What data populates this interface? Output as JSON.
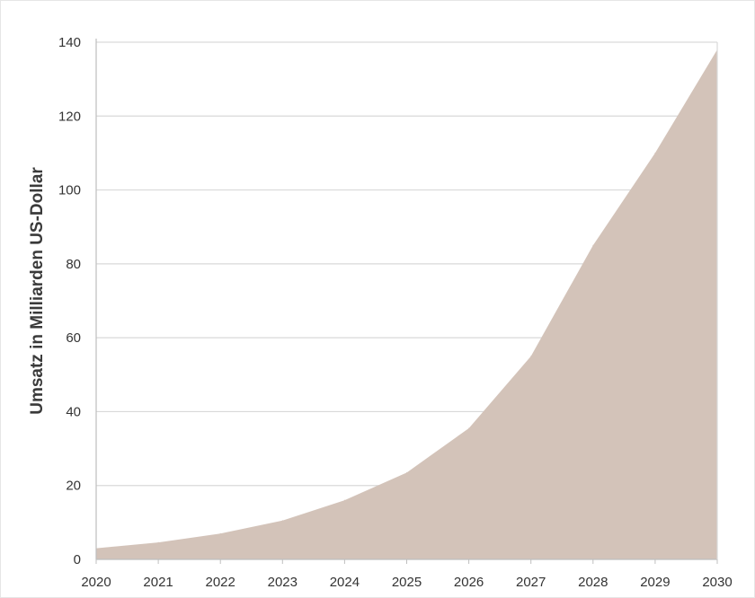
{
  "chart_data": {
    "type": "area",
    "title": "",
    "xlabel": "",
    "ylabel": "Umsatz in Milliarden US-Dollar",
    "x": [
      "2020",
      "2021",
      "2022",
      "2023",
      "2024",
      "2025",
      "2026",
      "2027",
      "2028",
      "2029",
      "2030"
    ],
    "series": [
      {
        "values": [
          3,
          4.6,
          7,
          10.5,
          16,
          23.5,
          35.5,
          55,
          85,
          110,
          138
        ]
      }
    ],
    "xlim": [
      2020,
      2030
    ],
    "ylim": [
      0,
      140
    ],
    "yticks": [
      0,
      20,
      40,
      60,
      80,
      100,
      120,
      140
    ],
    "grid": "horizontal",
    "fill_color": "#d3c3b9",
    "grid_color": "#d9d9d9",
    "axis_color": "#bfbfbf"
  }
}
